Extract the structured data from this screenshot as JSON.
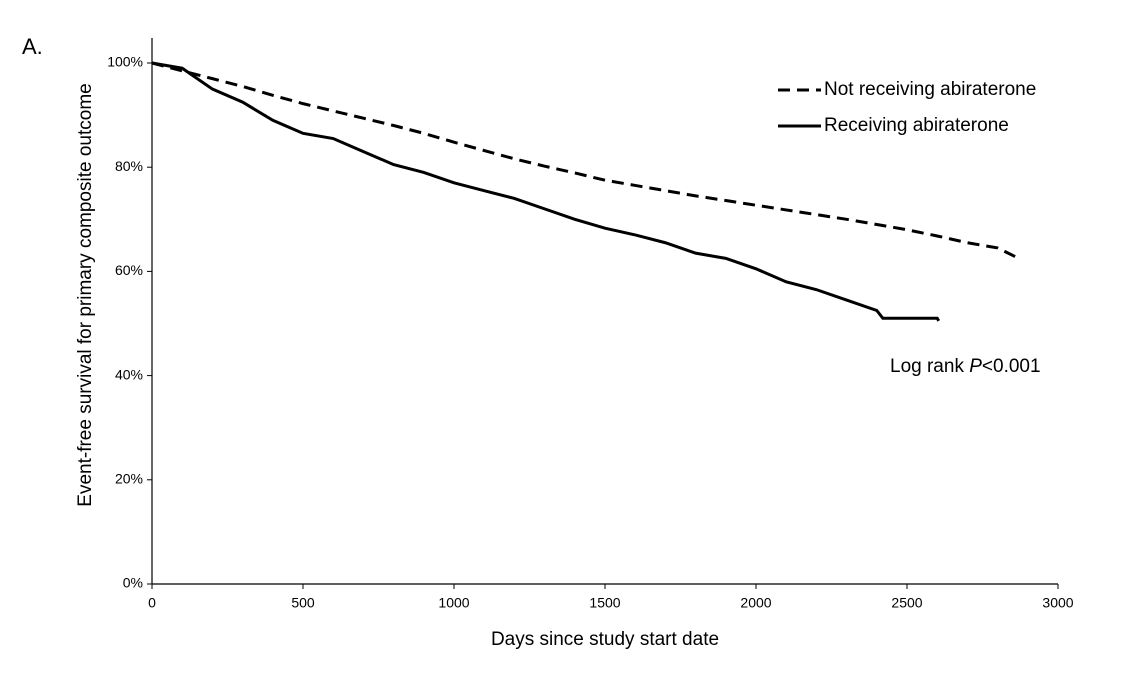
{
  "chart_data": {
    "type": "line",
    "panel_label": "A.",
    "x_label": "Days since study start date",
    "y_label": "Event-free survival for primary composite outcome",
    "annotation": {
      "prefix": "Log rank ",
      "italic": "P",
      "suffix": "<0.001"
    },
    "xlim": [
      0,
      3000
    ],
    "xticks": [
      0,
      500,
      1000,
      1500,
      2000,
      2500,
      3000
    ],
    "ylim": [
      0,
      100
    ],
    "yticks": [
      {
        "value": 0,
        "label": "0%"
      },
      {
        "value": 20,
        "label": "20%"
      },
      {
        "value": 40,
        "label": "40%"
      },
      {
        "value": 60,
        "label": "60%"
      },
      {
        "value": 80,
        "label": "80%"
      },
      {
        "value": 100,
        "label": "100%"
      }
    ],
    "legend": "upper right",
    "series": [
      {
        "name": "Not receiving abiraterone",
        "color": "#000000",
        "dash": true,
        "x": [
          0,
          100,
          200,
          300,
          400,
          500,
          600,
          700,
          800,
          900,
          1000,
          1100,
          1200,
          1300,
          1400,
          1500,
          1600,
          1700,
          1800,
          1900,
          2000,
          2100,
          2200,
          2300,
          2400,
          2500,
          2600,
          2700,
          2800,
          2870
        ],
        "values": [
          100,
          98.5,
          97,
          95.5,
          93.8,
          92.2,
          90.8,
          89.4,
          88,
          86.5,
          84.8,
          83.2,
          81.6,
          80.2,
          78.9,
          77.5,
          76.5,
          75.5,
          74.5,
          73.6,
          72.7,
          71.8,
          70.9,
          70,
          69,
          68,
          66.8,
          65.5,
          64.5,
          62.5
        ]
      },
      {
        "name": "Receiving abiraterone",
        "color": "#000000",
        "dash": false,
        "x": [
          0,
          100,
          200,
          300,
          400,
          500,
          600,
          700,
          800,
          900,
          1000,
          1100,
          1200,
          1300,
          1400,
          1500,
          1600,
          1700,
          1800,
          1900,
          2000,
          2100,
          2200,
          2300,
          2400,
          2420,
          2600,
          2605
        ],
        "values": [
          100,
          99,
          95,
          92.5,
          89,
          86.5,
          85.5,
          83,
          80.5,
          79,
          77,
          75.5,
          74,
          72,
          70,
          68.3,
          67,
          65.5,
          63.5,
          62.5,
          60.5,
          58,
          56.5,
          54.5,
          52.5,
          51,
          51,
          50.5
        ]
      }
    ]
  }
}
